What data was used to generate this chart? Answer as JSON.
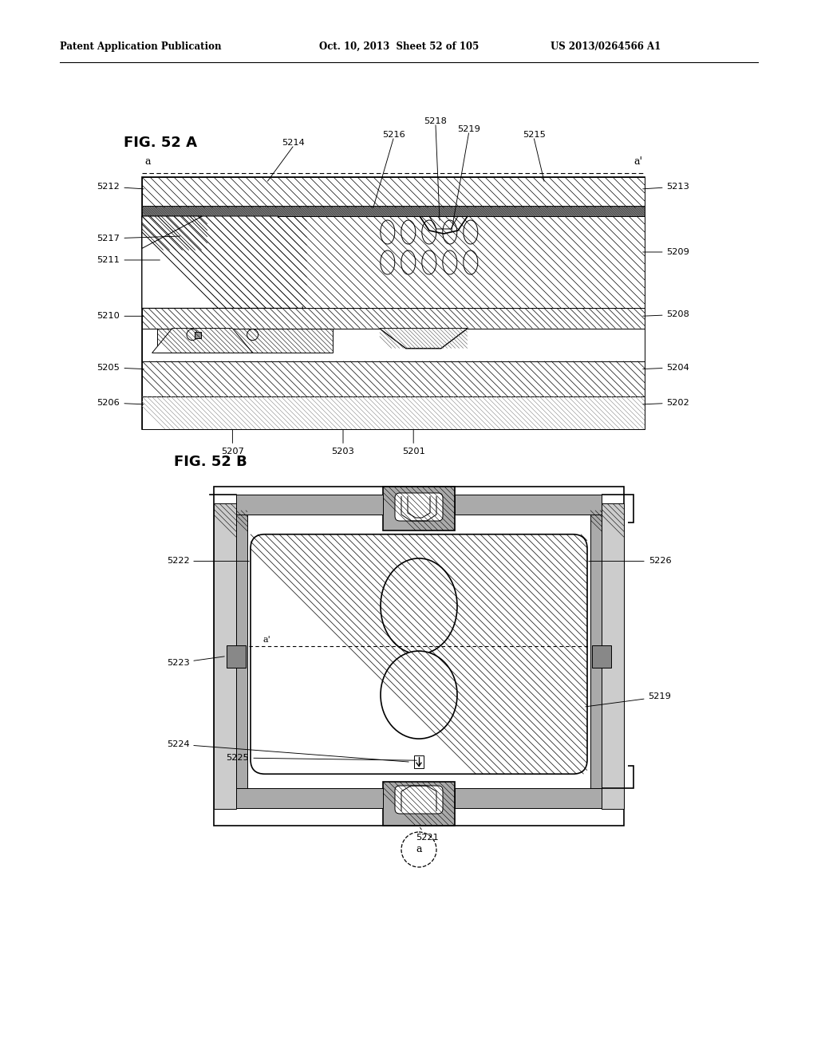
{
  "header_left": "Patent Application Publication",
  "header_mid": "Oct. 10, 2013  Sheet 52 of 105",
  "header_right": "US 2013/0264566 A1",
  "fig_a_title": "FIG. 52 A",
  "fig_b_title": "FIG. 52 B",
  "bg_color": "#ffffff",
  "lc": "#000000",
  "gray_dark": "#555555",
  "gray_med": "#888888",
  "gray_light": "#bbbbbb",
  "gray_fill": "#cccccc"
}
